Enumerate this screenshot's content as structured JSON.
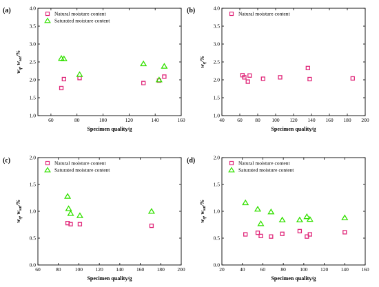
{
  "colors": {
    "natural": "#e0287a",
    "saturated": "#33e000",
    "axis": "#000000"
  },
  "chart_data": [
    {
      "type": "scatter",
      "label": "(a)",
      "xlabel": "Specimen quality/g",
      "ylabel": "w_q, w_sat/%",
      "xlim": [
        50,
        160
      ],
      "ylim": [
        1.0,
        4.0
      ],
      "xticks": [
        60,
        80,
        100,
        120,
        140,
        160
      ],
      "yticks": [
        1.0,
        1.5,
        2.0,
        2.5,
        3.0,
        3.5,
        4.0
      ],
      "ytick_labels": [
        "1.0",
        "1.5",
        "2.0",
        "2.5",
        "3.0",
        "3.5",
        "4.0"
      ],
      "legend_position": "top-left",
      "series": [
        {
          "name": "Natural moisture content",
          "marker": "square",
          "color": "#e0287a",
          "x": [
            68,
            70,
            82,
            131,
            143,
            147
          ],
          "y": [
            1.77,
            2.02,
            2.05,
            1.91,
            1.98,
            2.09
          ]
        },
        {
          "name": "Saturated moisture content",
          "marker": "triangle",
          "color": "#33e000",
          "x": [
            68,
            70,
            82,
            131,
            143,
            147
          ],
          "y": [
            2.6,
            2.59,
            2.15,
            2.45,
            2.0,
            2.38
          ]
        }
      ]
    },
    {
      "type": "scatter",
      "label": "(b)",
      "xlabel": "Specimen quality/g",
      "ylabel": "w_q/%",
      "xlim": [
        40,
        200
      ],
      "ylim": [
        1.0,
        4.0
      ],
      "xticks": [
        40,
        60,
        80,
        100,
        120,
        140,
        160,
        180,
        200
      ],
      "yticks": [
        1.0,
        1.5,
        2.0,
        2.5,
        3.0,
        3.5,
        4.0
      ],
      "ytick_labels": [
        "1.0",
        "1.5",
        "2.0",
        "2.5",
        "3.0",
        "3.5",
        "4.0"
      ],
      "legend_position": "top-left",
      "series": [
        {
          "name": "Natural moisture content",
          "marker": "square",
          "color": "#e0287a",
          "x": [
            63,
            65,
            69,
            71,
            86,
            105,
            136,
            138,
            186
          ],
          "y": [
            2.13,
            2.07,
            1.95,
            2.12,
            2.03,
            2.07,
            2.33,
            2.02,
            2.04
          ]
        }
      ]
    },
    {
      "type": "scatter",
      "label": "(c)",
      "xlabel": "Specimen quality/g",
      "ylabel": "w_q, w_sat/%",
      "xlim": [
        60,
        200
      ],
      "ylim": [
        0.0,
        2.0
      ],
      "xticks": [
        60,
        80,
        100,
        120,
        140,
        160,
        180,
        200
      ],
      "yticks": [
        0.0,
        0.5,
        1.0,
        1.5,
        2.0
      ],
      "ytick_labels": [
        "0.0",
        "0.5",
        "1.0",
        "1.5",
        "2.0"
      ],
      "legend_position": "top-left",
      "series": [
        {
          "name": "Natural moisture content",
          "marker": "square",
          "color": "#e0287a",
          "x": [
            89,
            92,
            101,
            171
          ],
          "y": [
            0.78,
            0.76,
            0.76,
            0.73
          ]
        },
        {
          "name": "Saturated moisture content",
          "marker": "triangle",
          "color": "#33e000",
          "x": [
            89,
            90,
            92,
            101,
            171
          ],
          "y": [
            1.28,
            1.05,
            0.96,
            0.92,
            1.0
          ]
        }
      ]
    },
    {
      "type": "scatter",
      "label": "(d)",
      "xlabel": "Specimen quality/g",
      "ylabel": "w_q, w_sat/%",
      "xlim": [
        20,
        160
      ],
      "ylim": [
        0.0,
        2.0
      ],
      "xticks": [
        20,
        40,
        60,
        80,
        100,
        120,
        140,
        160
      ],
      "yticks": [
        0.0,
        0.5,
        1.0,
        1.5,
        2.0
      ],
      "ytick_labels": [
        "0.0",
        "0.5",
        "1.0",
        "1.5",
        "2.0"
      ],
      "legend_position": "top-left",
      "series": [
        {
          "name": "Natural moisture content",
          "marker": "square",
          "color": "#e0287a",
          "x": [
            43,
            55,
            58,
            68,
            79,
            96,
            103,
            106,
            140
          ],
          "y": [
            0.57,
            0.6,
            0.54,
            0.53,
            0.58,
            0.63,
            0.53,
            0.57,
            0.61
          ]
        },
        {
          "name": "Saturated moisture content",
          "marker": "triangle",
          "color": "#33e000",
          "x": [
            43,
            55,
            58,
            68,
            79,
            96,
            103,
            106,
            140
          ],
          "y": [
            1.16,
            1.04,
            0.77,
            0.99,
            0.84,
            0.84,
            0.9,
            0.85,
            0.88
          ]
        }
      ]
    }
  ]
}
